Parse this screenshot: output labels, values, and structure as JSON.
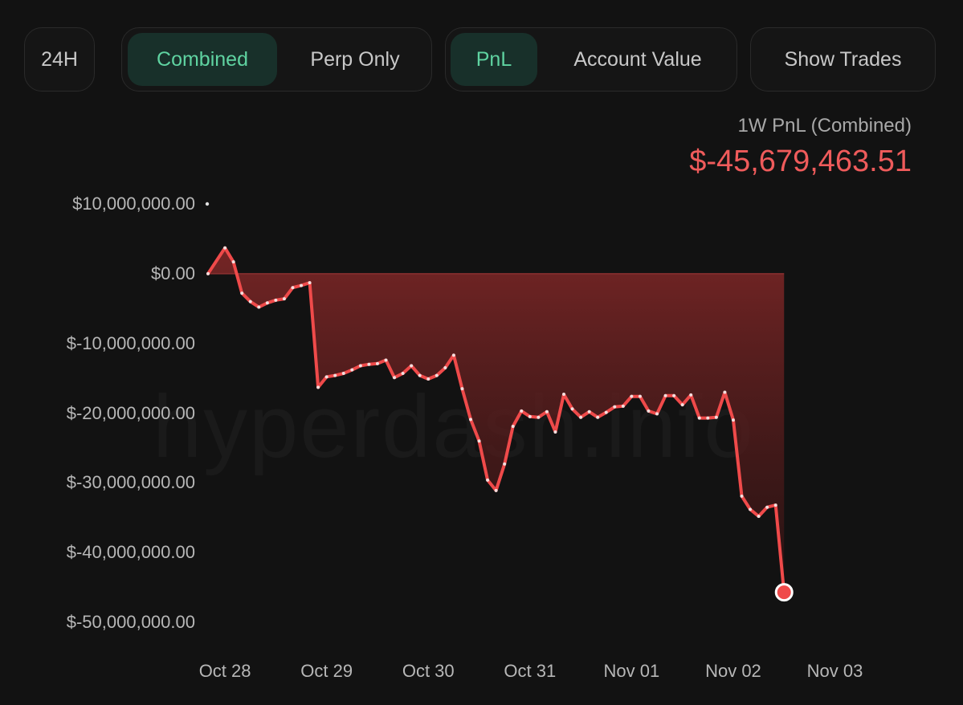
{
  "controls": {
    "range": {
      "label": "24H"
    },
    "mode": {
      "combined": "Combined",
      "perp_only": "Perp Only",
      "active": "combined"
    },
    "metric": {
      "pnl": "PnL",
      "account_value": "Account Value",
      "active": "pnl"
    },
    "show_trades": "Show Trades"
  },
  "summary": {
    "label": "1W PnL (Combined)",
    "value": "$-45,679,463.51"
  },
  "watermark": "hyperdash.info",
  "colors": {
    "background": "#121212",
    "line": "#ef4a4a",
    "fill": "#7a2626",
    "accent_green": "#5fd3a1",
    "negative": "#ef5b5b"
  },
  "chart_data": {
    "type": "area",
    "title": "1W PnL (Combined)",
    "xlabel": "",
    "ylabel": "",
    "ylim": [
      -50000000,
      10000000
    ],
    "x_range": [
      "2024-10-27 20:00",
      "2024-11-03 20:00"
    ],
    "y_ticks": [
      10000000,
      0,
      -10000000,
      -20000000,
      -30000000,
      -40000000,
      -50000000
    ],
    "y_tick_labels": [
      "$10,000,000.00",
      "$0.00",
      "$-10,000,000.00",
      "$-20,000,000.00",
      "$-30,000,000.00",
      "$-40,000,000.00",
      "$-50,000,000.00"
    ],
    "x_ticks": [
      "2024-10-28 00:00",
      "2024-10-29 00:00",
      "2024-10-30 00:00",
      "2024-10-31 00:00",
      "2024-11-01 00:00",
      "2024-11-02 00:00",
      "2024-11-03 00:00"
    ],
    "x_tick_labels": [
      "Oct 28",
      "Oct 29",
      "Oct 30",
      "Oct 31",
      "Nov 01",
      "Nov 02",
      "Nov 03"
    ],
    "grid": false,
    "series": [
      {
        "x": [
          "2024-10-27 20:00",
          "2024-10-28 00:00",
          "2024-10-28 02:00",
          "2024-10-28 04:00",
          "2024-10-28 06:00",
          "2024-10-28 08:00",
          "2024-10-28 10:00",
          "2024-10-28 12:00",
          "2024-10-28 14:00",
          "2024-10-28 16:00",
          "2024-10-28 18:00",
          "2024-10-28 20:00",
          "2024-10-28 22:00",
          "2024-10-29 00:00",
          "2024-10-29 02:00",
          "2024-10-29 04:00",
          "2024-10-29 06:00",
          "2024-10-29 08:00",
          "2024-10-29 10:00",
          "2024-10-29 12:00",
          "2024-10-29 14:00",
          "2024-10-29 16:00",
          "2024-10-29 18:00",
          "2024-10-29 20:00",
          "2024-10-29 22:00",
          "2024-10-30 00:00",
          "2024-10-30 02:00",
          "2024-10-30 04:00",
          "2024-10-30 06:00",
          "2024-10-30 08:00",
          "2024-10-30 10:00",
          "2024-10-30 12:00",
          "2024-10-30 14:00",
          "2024-10-30 16:00",
          "2024-10-30 18:00",
          "2024-10-30 20:00",
          "2024-10-30 22:00",
          "2024-10-31 00:00",
          "2024-10-31 02:00",
          "2024-10-31 04:00",
          "2024-10-31 06:00",
          "2024-10-31 08:00",
          "2024-10-31 10:00",
          "2024-10-31 12:00",
          "2024-10-31 14:00",
          "2024-10-31 16:00",
          "2024-10-31 18:00",
          "2024-10-31 20:00",
          "2024-10-31 22:00",
          "2024-11-01 00:00",
          "2024-11-01 02:00",
          "2024-11-01 04:00",
          "2024-11-01 06:00",
          "2024-11-01 08:00",
          "2024-11-01 10:00",
          "2024-11-01 12:00",
          "2024-11-01 14:00",
          "2024-11-01 16:00",
          "2024-11-01 18:00",
          "2024-11-01 20:00",
          "2024-11-01 22:00",
          "2024-11-02 00:00",
          "2024-11-02 02:00",
          "2024-11-02 04:00",
          "2024-11-02 06:00",
          "2024-11-02 08:00",
          "2024-11-02 10:00",
          "2024-11-02 12:00",
          "2024-11-02 14:00",
          "2024-11-02 16:00",
          "2024-11-02 18:00",
          "2024-11-02 20:00",
          "2024-11-02 22:00",
          "2024-11-03 00:00",
          "2024-11-03 02:00",
          "2024-11-03 04:00",
          "2024-11-03 06:00",
          "2024-11-03 08:00",
          "2024-11-03 10:00",
          "2024-11-03 12:00",
          "2024-11-03 14:00",
          "2024-11-03 16:00",
          "2024-11-03 18:00",
          "2024-11-03 20:00"
        ],
        "values": [
          0,
          3700000,
          1700000,
          -2800000,
          -4000000,
          -4800000,
          -4200000,
          -3800000,
          -3600000,
          -2000000,
          -1700000,
          -1300000,
          -16300000,
          -14800000,
          -14600000,
          -14300000,
          -13800000,
          -13200000,
          -13000000,
          -12900000,
          -12400000,
          -14900000,
          -14300000,
          -13200000,
          -14600000,
          -15100000,
          -14600000,
          -13500000,
          -11700000,
          -16500000,
          -20900000,
          -24000000,
          -29600000,
          -31100000,
          -27300000,
          -21900000,
          -19700000,
          -20500000,
          -20600000,
          -19800000,
          -22700000,
          -17300000,
          -19400000,
          -20600000,
          -19800000,
          -20600000,
          -19900000,
          -19100000,
          -19000000,
          -17600000,
          -17600000,
          -19700000,
          -20100000,
          -17500000,
          -17500000,
          -18800000,
          -17400000,
          -20700000,
          -20700000,
          -20600000,
          -17000000,
          -21000000,
          -31900000,
          -33800000,
          -34800000,
          -33500000,
          -33200000,
          -45700000,
          null,
          null,
          null,
          null,
          null,
          null,
          null,
          null,
          null,
          null,
          null,
          null,
          null,
          null,
          null,
          null
        ]
      }
    ]
  }
}
